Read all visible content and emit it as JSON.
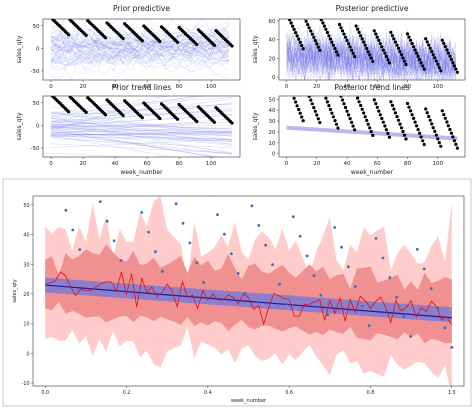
{
  "chart_data": [
    {
      "id": "prior-predictive",
      "type": "line",
      "title": "Prior predictive",
      "xlabel": "",
      "ylabel": "sales_qty",
      "xlim": [
        -5,
        118
      ],
      "ylim": [
        -70,
        65
      ],
      "xticks": [
        0,
        20,
        40,
        60,
        80,
        100
      ],
      "yticks": [
        -50,
        0,
        50
      ],
      "band_color": "#6a6ae8",
      "series": [
        {
          "role": "observed",
          "color": "#000000",
          "shape": "sawtooth",
          "x_range": [
            0,
            113
          ],
          "start": 50,
          "end": 20,
          "period": 11.4
        }
      ]
    },
    {
      "id": "posterior-predictive",
      "type": "line",
      "title": "Posterior predictive",
      "xlabel": "",
      "ylabel": "sales_qty",
      "xlim": [
        -5,
        118
      ],
      "ylim": [
        -3,
        62
      ],
      "xticks": [
        0,
        20,
        40,
        60,
        80,
        100
      ],
      "yticks": [
        0,
        20,
        40,
        60
      ],
      "band_color": "#6a6ae8",
      "series": [
        {
          "role": "observed",
          "color": "#000000",
          "shape": "sawtooth",
          "x_range": [
            0,
            113
          ],
          "start": 50,
          "end": 20,
          "period": 11.4
        }
      ]
    },
    {
      "id": "prior-trend-lines",
      "type": "line",
      "title": "Prior trend lines",
      "xlabel": "week_number",
      "ylabel": "sales_qty",
      "xlim": [
        -5,
        118
      ],
      "ylim": [
        -70,
        65
      ],
      "xticks": [
        0,
        20,
        40,
        60,
        80,
        100
      ],
      "yticks": [
        -50,
        0,
        50
      ],
      "band_color": "#6a6ae8",
      "series": [
        {
          "role": "observed",
          "color": "#000000",
          "shape": "sawtooth",
          "x_range": [
            0,
            113
          ],
          "start": 50,
          "end": 20,
          "period": 11.4
        }
      ]
    },
    {
      "id": "posterior-trend-lines",
      "type": "scatter",
      "title": "Posterior trend lines",
      "xlabel": "week_number",
      "ylabel": "sales_qty",
      "xlim": [
        -5,
        118
      ],
      "ylim": [
        -3,
        53
      ],
      "xticks": [
        0,
        20,
        40,
        60,
        80,
        100
      ],
      "yticks": [
        0,
        10,
        20,
        30,
        40,
        50
      ],
      "band_color": "#8a8ae6",
      "series": [
        {
          "role": "observed",
          "color": "#000000",
          "shape": "sawtooth",
          "x_range": [
            0,
            113
          ],
          "start": 50,
          "end": 20,
          "period": 11.4
        },
        {
          "role": "trend",
          "color": "#8a8ae6",
          "x": [
            0,
            113
          ],
          "y": [
            24,
            14
          ]
        }
      ]
    },
    {
      "id": "normalized-fit",
      "type": "area",
      "title": "",
      "xlabel": "week_number",
      "ylabel": "sales_qty",
      "xlim": [
        -0.03,
        1.03
      ],
      "ylim": [
        -11,
        53
      ],
      "xticks": [
        0.0,
        0.2,
        0.4,
        0.6,
        0.8,
        1.0
      ],
      "yticks": [
        -10,
        0,
        10,
        20,
        30,
        40,
        50
      ],
      "series": [
        {
          "role": "outer-band",
          "color": "#ffc6c6",
          "center": [
            24,
            14
          ],
          "halfwidth": 20
        },
        {
          "role": "inner-band",
          "color": "#f08a8a",
          "center": [
            24,
            14
          ],
          "halfwidth": 10
        },
        {
          "role": "trend-band",
          "color": "#7b7bd6",
          "center": [
            23,
            13
          ],
          "halfwidth": 2.5
        },
        {
          "role": "trend-line",
          "color": "#1a1aa0",
          "x": [
            0,
            1
          ],
          "y": [
            23,
            12
          ]
        },
        {
          "role": "mean-prediction",
          "color": "#e01010",
          "shape": "noisy",
          "start": 24,
          "end": 13
        },
        {
          "role": "observed",
          "color": "#3a70b0",
          "shape": "sawtooth",
          "x_range": [
            0,
            1
          ],
          "start": 50,
          "end": 20,
          "period": 0.1
        }
      ]
    }
  ]
}
